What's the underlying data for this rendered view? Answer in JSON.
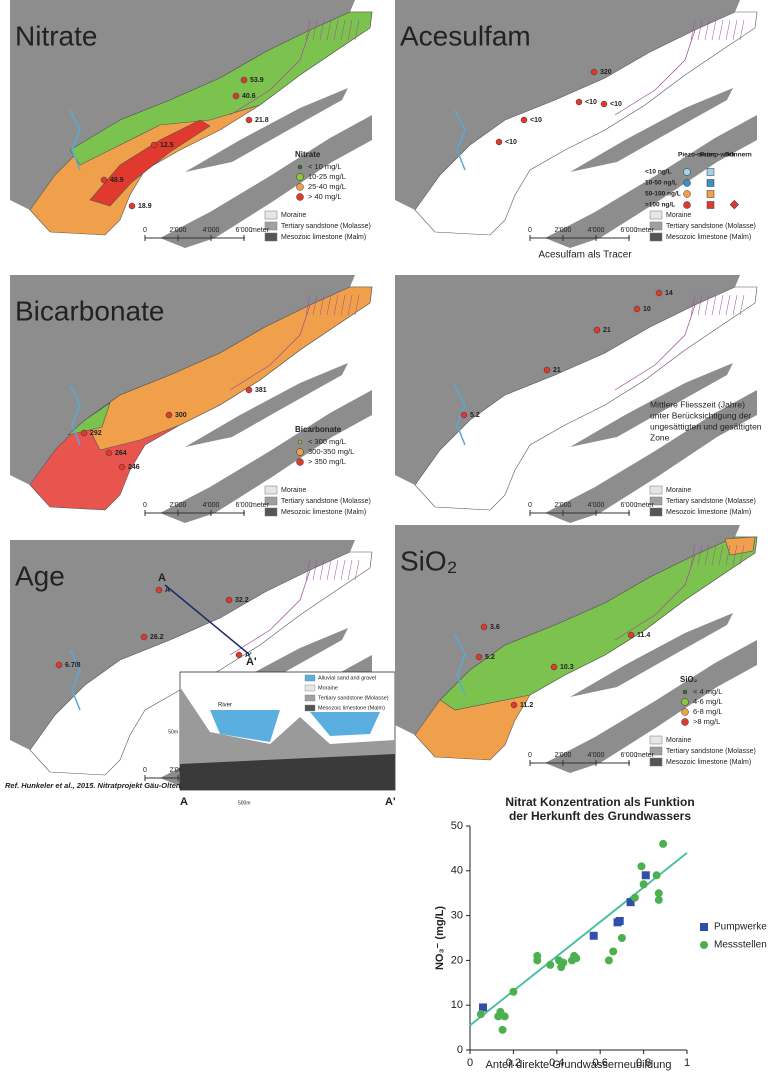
{
  "geology": [
    "Moraine",
    "Tertiary sandstone (Molasse)",
    "Mesozoic limestone (Malm)"
  ],
  "scale": {
    "ticks": [
      "0",
      "2'000",
      "4'000",
      "6'000"
    ],
    "unit": "meter"
  },
  "panels": [
    {
      "title": "Nitrate",
      "zones": "nitrate",
      "legend_title": "Nitrate",
      "legend": [
        "< 10 mg/L",
        "10-25 mg/L",
        "25-40 mg/L",
        "> 40 mg/L"
      ],
      "legend_colors": [
        "#2a7a2a",
        "#8cc63f",
        "#f0a04b",
        "#e03a2f"
      ],
      "labels": [
        "21.8",
        "12.5",
        "48.9",
        "18.9",
        "53.9",
        "40.6"
      ]
    },
    {
      "title": "Acesulfam",
      "zones": "white",
      "legend_head": [
        "Piezo-meter",
        "Pump-werk",
        "Dünnern"
      ],
      "legend": [
        "<10 ng/L",
        "10-50 ng/L",
        "50-100 ng/L",
        ">100 ng/L"
      ],
      "legend_colors": [
        "#9fd3f0",
        "#3a8fc8",
        "#f0a04b",
        "#e03a2f"
      ],
      "labels": [
        "320",
        "<10",
        "<10",
        "<10",
        "<10"
      ],
      "caption": "Acesulfam als Tracer"
    },
    {
      "title": "Bicarbonate",
      "zones": "bicarbonate",
      "legend_title": "Bicarbonate",
      "legend": [
        "< 300 mg/L",
        "300-350 mg/L",
        "> 350 mg/L"
      ],
      "legend_colors": [
        "#8cc63f",
        "#f0a04b",
        "#e03a2f"
      ],
      "labels": [
        "381",
        "264",
        "246",
        "292",
        "300"
      ]
    },
    {
      "title": null,
      "zones": "white",
      "labels": [
        "14",
        "10",
        "21",
        "21",
        "5.2"
      ],
      "note": [
        "Mittlere Fliesszeit (Jahre)",
        "unter Berücksichtigung der",
        "ungesättigten und gesättigten",
        "Zone"
      ]
    },
    {
      "title": "Age",
      "zones": "white",
      "labels": [
        "32.2",
        "26.2",
        "6.7/8",
        "A",
        "A'"
      ],
      "section": {
        "legend": [
          "Alluvial sand and gravel",
          "Moraine",
          "Tertiary sandstone (Molasse)",
          "Mesozoic limestone (Malm)"
        ],
        "ends": [
          "A",
          "A'"
        ],
        "river": "River",
        "hscale": "500m",
        "vscale": "50m"
      },
      "reference": "Ref. Hunkeler et al., 2015. Nitratprojekt Gäu-Olten."
    },
    {
      "title": "SiO₂",
      "zones": "sio2",
      "legend_title": "SiO₂",
      "legend": [
        "< 4 mg/L",
        "4-6 mg/L",
        "6-8 mg/L",
        ">8 mg/L"
      ],
      "legend_colors": [
        "#2a7a2a",
        "#8cc63f",
        "#f0a04b",
        "#e03a2f"
      ],
      "labels": [
        "11.4",
        "10.3",
        "11.2",
        "5.2",
        "3.6"
      ]
    }
  ],
  "chart_data": {
    "type": "scatter",
    "title": [
      "Nitrat Konzentration als Funktion",
      "der Herkunft des Grundwassers"
    ],
    "xlabel": "Anteil direkte Grundwasserneubildung",
    "ylabel": "NO₃⁻ (mg/L)",
    "xlim": [
      0,
      1
    ],
    "xticks": [
      0,
      0.2,
      0.4,
      0.6,
      0.8,
      1
    ],
    "ylim": [
      0,
      50
    ],
    "yticks": [
      0,
      10,
      20,
      30,
      40,
      50
    ],
    "series": [
      {
        "name": "Pumpwerke",
        "color": "#2f4fa8",
        "marker": "square",
        "x": [
          0.06,
          0.57,
          0.68,
          0.69,
          0.74,
          0.81
        ],
        "values": [
          9.5,
          25.5,
          28.5,
          28.8,
          33,
          39
        ]
      },
      {
        "name": "Messstellen",
        "color": "#4cb050",
        "marker": "circle",
        "x": [
          0.05,
          0.13,
          0.14,
          0.15,
          0.16,
          0.2,
          0.31,
          0.31,
          0.37,
          0.41,
          0.42,
          0.43,
          0.47,
          0.48,
          0.49,
          0.64,
          0.66,
          0.7,
          0.76,
          0.79,
          0.8,
          0.86,
          0.87,
          0.87,
          0.89
        ],
        "values": [
          8,
          7.5,
          8.5,
          4.5,
          7.5,
          13,
          21,
          20,
          19,
          20,
          18.5,
          19.5,
          20,
          21,
          20.5,
          20,
          22,
          25,
          34,
          41,
          37,
          39,
          35,
          33.5,
          46
        ]
      }
    ],
    "fit": {
      "color": "#4cc0a0",
      "x": [
        0,
        1
      ],
      "values": [
        5.5,
        44
      ]
    }
  }
}
